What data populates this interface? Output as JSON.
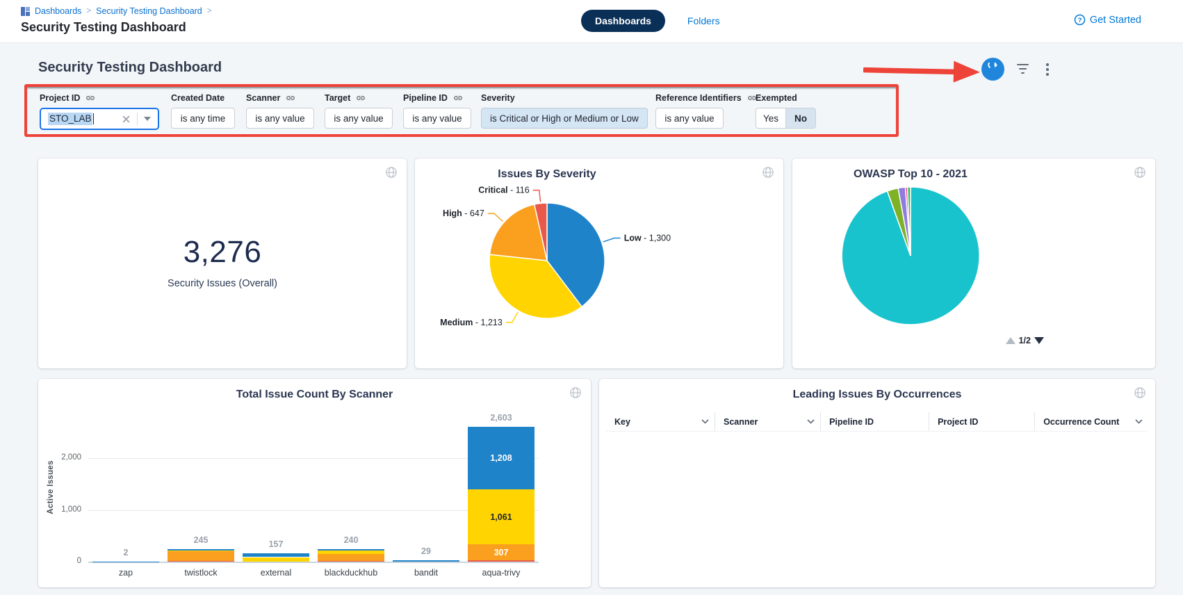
{
  "header": {
    "breadcrumb": {
      "items": [
        "Dashboards",
        "Security Testing Dashboard"
      ],
      "separator": ">"
    },
    "page_title": "Security Testing Dashboard",
    "tabs": {
      "dashboards": "Dashboards",
      "folders": "Folders"
    },
    "get_started_label": "Get Started"
  },
  "main": {
    "section_title": "Security Testing Dashboard"
  },
  "filters": {
    "groups": [
      {
        "id": "project-id",
        "label": "Project ID",
        "link_icon": true,
        "control": "combobox",
        "value": "STO_LAB"
      },
      {
        "id": "created-date",
        "label": "Created Date",
        "link_icon": false,
        "control": "button",
        "value": "is any time",
        "active": false
      },
      {
        "id": "scanner",
        "label": "Scanner",
        "link_icon": true,
        "control": "button",
        "value": "is any value",
        "active": false
      },
      {
        "id": "target",
        "label": "Target",
        "link_icon": true,
        "control": "button",
        "value": "is any value",
        "active": false
      },
      {
        "id": "pipeline-id",
        "label": "Pipeline ID",
        "link_icon": true,
        "control": "button",
        "value": "is any value",
        "active": false
      },
      {
        "id": "severity",
        "label": "Severity",
        "link_icon": false,
        "control": "button",
        "value": "is Critical or High or Medium or Low",
        "active": true
      },
      {
        "id": "reference-identifiers",
        "label": "Reference Identifiers",
        "link_icon": true,
        "control": "button",
        "value": "is any value",
        "active": false
      },
      {
        "id": "exempted",
        "label": "Exempted",
        "link_icon": false,
        "control": "toggle",
        "options": [
          "Yes",
          "No"
        ],
        "selected": "No"
      }
    ]
  },
  "chart_data": [
    {
      "id": "security-issues-overall",
      "type": "single_value",
      "value": "3,276",
      "label": "Security Issues (Overall)"
    },
    {
      "id": "issues-by-severity",
      "type": "pie",
      "title": "Issues By Severity",
      "start": "top",
      "direction": "clockwise",
      "labels": "outside-with-leaders",
      "slices": [
        {
          "label": "Low",
          "value": 1300,
          "display": "1,300",
          "color": "#1f83c9"
        },
        {
          "label": "Medium",
          "value": 1213,
          "display": "1,213",
          "color": "#ffd400"
        },
        {
          "label": "High",
          "value": 647,
          "display": "647",
          "color": "#fba01e"
        },
        {
          "label": "Critical",
          "value": 116,
          "display": "116",
          "color": "#e8594a"
        }
      ]
    },
    {
      "id": "owasp-top-10-2021",
      "type": "pie",
      "title": "OWASP Top 10 - 2021",
      "labels": "hidden",
      "slices": [
        {
          "label": "",
          "percent": 94.5,
          "color": "#18c3cd"
        },
        {
          "label": "",
          "percent": 2.6,
          "color": "#7fb127"
        },
        {
          "label": "",
          "percent": 1.7,
          "color": "#8f7ce0"
        },
        {
          "label": "",
          "percent": 0.5,
          "color": "#f23a96"
        },
        {
          "label": "",
          "percent": 0.7,
          "color": "#2bbf56"
        }
      ],
      "pagination": {
        "text": "1/2",
        "up_enabled": false,
        "down_enabled": true
      }
    },
    {
      "id": "total-issue-count-by-scanner",
      "type": "stacked_bar",
      "title": "Total Issue Count By Scanner",
      "ylabel": "Active Issues",
      "ymax": 2800,
      "grid": true,
      "yticks": [
        {
          "value": 0,
          "label": "0"
        },
        {
          "value": 1000,
          "label": "1,000"
        },
        {
          "value": 2000,
          "label": "2,000"
        }
      ],
      "bars": [
        {
          "category": "zap",
          "total": "2",
          "segments": [
            {
              "name": "low",
              "value": 2,
              "color": "#1f83c9"
            }
          ]
        },
        {
          "category": "twistlock",
          "total": "245",
          "segments": [
            {
              "name": "critical",
              "value": 10,
              "color": "#e8594a"
            },
            {
              "name": "high",
              "value": 188,
              "color": "#fba01e",
              "label": "188",
              "label_color": "#ffffff"
            },
            {
              "name": "medium",
              "value": 20,
              "color": "#ffd400"
            },
            {
              "name": "low",
              "value": 27,
              "color": "#1f83c9"
            }
          ]
        },
        {
          "category": "external",
          "total": "157",
          "segments": [
            {
              "name": "medium",
              "value": 87,
              "color": "#ffd400",
              "label": "87",
              "label_color": "#1c2430"
            },
            {
              "name": "low",
              "value": 70,
              "color": "#1f83c9"
            }
          ]
        },
        {
          "category": "blackduckhub",
          "total": "240",
          "segments": [
            {
              "name": "critical",
              "value": 15,
              "color": "#e8594a"
            },
            {
              "name": "high",
              "value": 138,
              "color": "#fba01e",
              "label": "138",
              "label_color": "#ffffff"
            },
            {
              "name": "medium",
              "value": 60,
              "color": "#ffd400"
            },
            {
              "name": "low",
              "value": 27,
              "color": "#1f83c9"
            }
          ]
        },
        {
          "category": "bandit",
          "total": "29",
          "segments": [
            {
              "name": "low",
              "value": 29,
              "color": "#1f83c9"
            }
          ]
        },
        {
          "category": "aqua-trivy",
          "total": "2,603",
          "segments": [
            {
              "name": "critical",
              "value": 27,
              "color": "#e8594a"
            },
            {
              "name": "high",
              "value": 307,
              "color": "#fba01e",
              "label": "307",
              "label_color": "#ffffff"
            },
            {
              "name": "medium",
              "value": 1061,
              "color": "#ffd400",
              "label": "1,061",
              "label_color": "#1c2430"
            },
            {
              "name": "low",
              "value": 1208,
              "color": "#1f83c9",
              "label": "1,208",
              "label_color": "#ffffff"
            }
          ]
        }
      ]
    },
    {
      "id": "leading-issues-by-occurrences",
      "type": "table",
      "title": "Leading Issues By Occurrences",
      "columns": [
        {
          "label": "Key",
          "sort_chevron": true
        },
        {
          "label": "Scanner",
          "sort_chevron": true
        },
        {
          "label": "Pipeline ID",
          "sort_chevron": false
        },
        {
          "label": "Project ID",
          "sort_chevron": false
        },
        {
          "label": "Occurrence Count",
          "sort_chevron": true
        }
      ],
      "rows": []
    }
  ],
  "colors": {
    "primary_blue": "#0278d5",
    "tab_active_bg": "#0a3057",
    "refresh_button_bg": "#1f86dc",
    "annotation_red": "#ee4338",
    "input_selection": "#b8d7f4",
    "active_chip_bg": "#d4e5f4",
    "severity_critical": "#e8594a",
    "severity_high": "#fba01e",
    "severity_medium": "#ffd400",
    "severity_low": "#1f83c9"
  }
}
